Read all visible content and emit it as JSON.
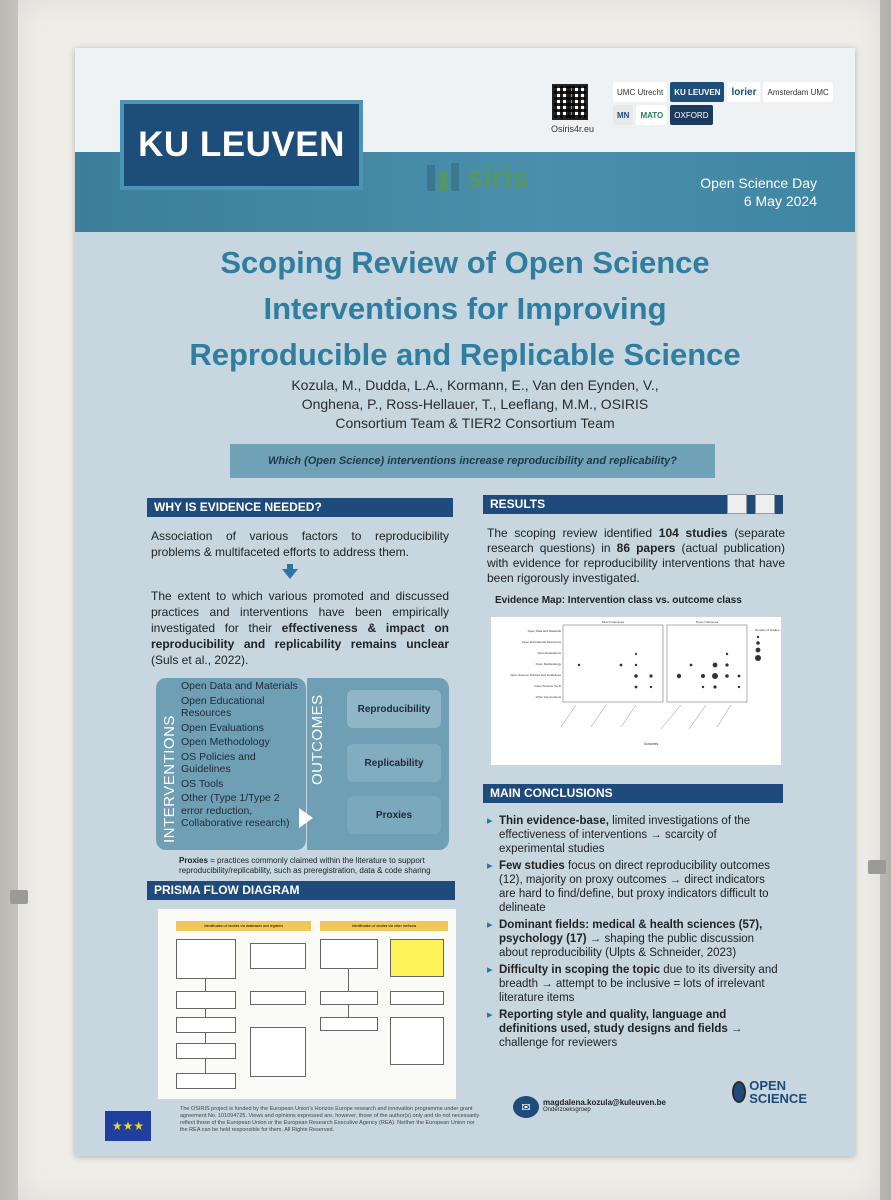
{
  "header": {
    "university": "KU LEUVEN",
    "project": "siris",
    "qr_caption": "Osiris4r.eu",
    "partners": [
      "UMC Utrecht",
      "KU LEUVEN",
      "lorier",
      "Amsterdam UMC",
      "MATO",
      "OXFORD",
      "MN",
      ""
    ],
    "event": "Open Science Day",
    "date": "6 May 2024"
  },
  "title": {
    "line1": "Scoping Review of Open Science",
    "line2": "Interventions for Improving",
    "line3": "Reproducible and Replicable Science"
  },
  "authors": {
    "line1": "Kozula, M., Dudda, L.A., Kormann, E., Van den Eynden, V.,",
    "line2": "Onghena, P., Ross-Hellauer, T., Leeflang, M.M., OSIRIS",
    "line3": "Consortium Team & TIER2 Consortium Team"
  },
  "question": "Which (Open Science) interventions increase reproducibility and replicability?",
  "why": {
    "heading": "WHY IS EVIDENCE NEEDED?",
    "p1": "Association of various factors to reproducibility problems & multifaceted efforts to address them.",
    "p2_start": "The extent to which various promoted and discussed practices and interventions have been empirically investigated for their ",
    "p2_bold": "effectiveness & impact on reproducibility and replicability remains unclear",
    "p2_end": " (Suls et al., 2022)."
  },
  "interventions": {
    "label": "INTERVENTIONS",
    "items": [
      "Open Data and Materials",
      "Open Educational Resources",
      "Open Evaluations",
      "Open Methodology",
      "OS Policies and Guidelines",
      "OS Tools",
      "Other (Type 1/Type 2 error reduction, Collaborative research)"
    ]
  },
  "outcomes": {
    "label": "OUTCOMES",
    "items": [
      "Reproducibility",
      "Replicability",
      "Proxies"
    ]
  },
  "proxies_note": {
    "bold": "Proxies",
    "text": " = practices commonly claimed within the literature to support reproducibility/replicability, such as preregistration, data & code sharing"
  },
  "prisma": {
    "heading": "PRISMA FLOW DIAGRAM",
    "col1_header": "Identification of studies via databases and registers",
    "col2_header": "Identification of studies via other methods"
  },
  "results": {
    "heading": "RESULTS",
    "t1": "The scoping review identified ",
    "b1": "104 studies",
    "t2": " (separate research questions) in ",
    "b2": "86 papers",
    "t3": " (actual publication) with evidence for reproducibility interventions that have been rigorously investigated."
  },
  "evidence_map": {
    "title": "Evidence Map: Intervention class vs. outcome class",
    "panel_left": "Direct Outcomes",
    "panel_right": "Proxy Outcomes",
    "rows": [
      "Open Data and Materials",
      "Open Educational Resources",
      "Open Evaluations",
      "Open Methodology",
      "Open Science Policies and Guidelines",
      "Open Science Tools",
      "Other interventions"
    ],
    "legend_title": "Number of studies",
    "xlabel": "Outcomes"
  },
  "conclusions": {
    "heading": "MAIN CONCLUSIONS",
    "items": [
      {
        "bold": "Thin evidence-base,",
        "text": " limited investigations of the effectiveness of interventions → scarcity of experimental studies"
      },
      {
        "bold": "Few studies",
        "text": " focus on direct reproducibility outcomes (12), majority on proxy outcomes → direct indicators are hard to find/define, but proxy indicators difficult to delineate"
      },
      {
        "bold": "Dominant fields: medical & health sciences (57), psychology (17)",
        "text": " → shaping the public discussion about reproducibility (Ulpts & Schneider, 2023)"
      },
      {
        "bold": "Difficulty in scoping the topic",
        "text": " due to its diversity and breadth → attempt to be inclusive = lots of irrelevant literature items"
      },
      {
        "bold": "Reporting style and quality, language and definitions used, study designs and fields",
        "text": " → challenge for reviewers"
      }
    ]
  },
  "footer": {
    "funding": "The OSIRIS project is funded by the European Union's Horizon Europe research and innovation programme under grant agreement No. 101094725. Views and opinions expressed are, however, those of the author(s) only and do not necessarily reflect those of the European Union or the European Research Executive Agency (REA). Neither the European Union nor the REA can be held responsible for them. All Rights Reserved.",
    "email": "magdalena.kozula@kuleuven.be",
    "email_sub": "Onderzoeksgroep",
    "open_science_1": "OPEN",
    "open_science_2": "SCIENCE"
  },
  "colors": {
    "navy": "#1f4a7c",
    "teal": "#3c7e9a",
    "title_blue": "#2f7ea0",
    "panel": "#6f9fb5"
  }
}
